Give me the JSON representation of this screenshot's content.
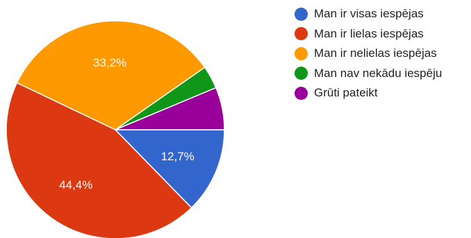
{
  "chart_data": {
    "type": "pie",
    "title": "",
    "categories": [
      "Man ir visas iespējas",
      "Man ir lielas iespējas",
      "Man ir nelielas iespējas",
      "Man nav nekādu iespēju",
      "Grūti pateikt"
    ],
    "values": [
      12.7,
      44.4,
      33.2,
      3.4,
      6.3
    ],
    "value_labels": [
      "12,7%",
      "44,4%",
      "33,2%",
      "",
      ""
    ],
    "colors": [
      "#3366cc",
      "#dc3912",
      "#ff9900",
      "#109618",
      "#990099"
    ],
    "legend_position": "right",
    "start_direction": "east",
    "direction": "clockwise"
  }
}
